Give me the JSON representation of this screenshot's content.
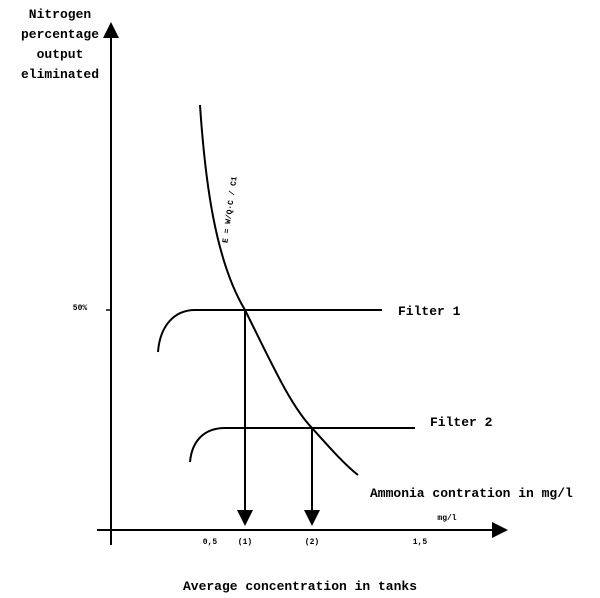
{
  "y_axis": {
    "label_lines": [
      "Nitrogen",
      "percentage",
      "output",
      "eliminated"
    ],
    "tick_label": "50%"
  },
  "curve": {
    "label": "E = W/Q·C / C1"
  },
  "filters": [
    {
      "label": "Filter 1"
    },
    {
      "label": "Filter 2"
    }
  ],
  "curve_note": "Ammonia contration in mg/l",
  "x_axis": {
    "unit": "mg/l",
    "tick_labels": [
      "0,5",
      "(1)",
      "(2)",
      "1,5"
    ],
    "title": "Average concentration in tanks"
  }
}
